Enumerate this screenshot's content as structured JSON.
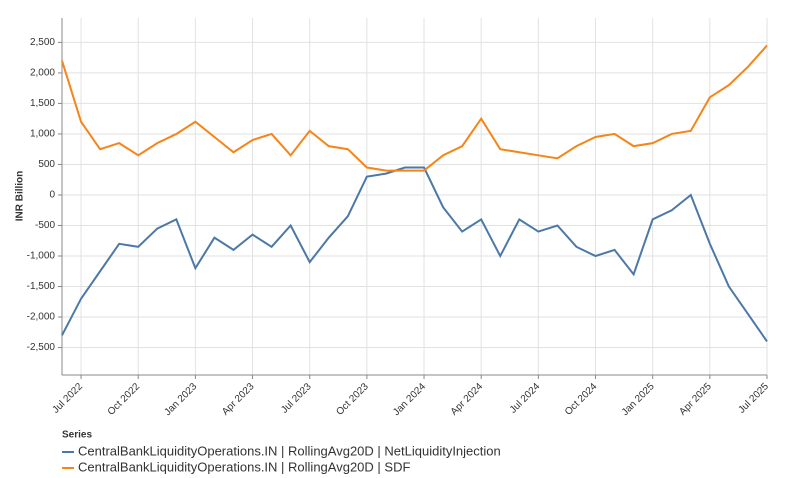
{
  "chart_data": {
    "type": "line",
    "y_label": "INR Billion",
    "legend_title": "Series",
    "x": [
      "2022-06",
      "2022-07",
      "2022-08",
      "2022-09",
      "2022-10",
      "2022-11",
      "2022-12",
      "2023-01",
      "2023-02",
      "2023-03",
      "2023-04",
      "2023-05",
      "2023-06",
      "2023-07",
      "2023-08",
      "2023-09",
      "2023-10",
      "2023-11",
      "2023-12",
      "2024-01",
      "2024-02",
      "2024-03",
      "2024-04",
      "2024-05",
      "2024-06",
      "2024-07",
      "2024-08",
      "2024-09",
      "2024-10",
      "2024-11",
      "2024-12",
      "2025-01",
      "2025-02",
      "2025-03",
      "2025-04",
      "2025-05",
      "2025-06",
      "2025-07"
    ],
    "series": [
      {
        "name": "CentralBankLiquidityOperations.IN | RollingAvg20D | NetLiquidityInjection",
        "color": "#4c78a8",
        "values": [
          -2300,
          -1700,
          -1250,
          -800,
          -850,
          -550,
          -400,
          -1200,
          -700,
          -900,
          -650,
          -850,
          -500,
          -1100,
          -700,
          -350,
          300,
          350,
          450,
          450,
          -200,
          -600,
          -400,
          -1000,
          -400,
          -600,
          -500,
          -850,
          -1000,
          -900,
          -1300,
          -400,
          -250,
          0,
          -800,
          -1500,
          -1950,
          -2400
        ]
      },
      {
        "name": "CentralBankLiquidityOperations.IN | RollingAvg20D | SDF",
        "color": "#f58518",
        "values": [
          2200,
          1200,
          750,
          850,
          650,
          850,
          1000,
          1200,
          950,
          700,
          900,
          1000,
          650,
          1050,
          800,
          750,
          450,
          400,
          400,
          400,
          650,
          800,
          1250,
          750,
          700,
          650,
          600,
          800,
          950,
          1000,
          800,
          850,
          1000,
          1050,
          1600,
          1800,
          2100,
          2450
        ]
      }
    ],
    "xlim": [
      "2022-06",
      "2025-07"
    ],
    "xticks": [
      {
        "value": "2022-07",
        "label": "Jul 2022"
      },
      {
        "value": "2022-10",
        "label": "Oct 2022"
      },
      {
        "value": "2023-01",
        "label": "Jan 2023"
      },
      {
        "value": "2023-04",
        "label": "Apr 2023"
      },
      {
        "value": "2023-07",
        "label": "Jul 2023"
      },
      {
        "value": "2023-10",
        "label": "Oct 2023"
      },
      {
        "value": "2024-01",
        "label": "Jan 2024"
      },
      {
        "value": "2024-04",
        "label": "Apr 2024"
      },
      {
        "value": "2024-07",
        "label": "Jul 2024"
      },
      {
        "value": "2024-10",
        "label": "Oct 2024"
      },
      {
        "value": "2025-01",
        "label": "Jan 2025"
      },
      {
        "value": "2025-04",
        "label": "Apr 2025"
      },
      {
        "value": "2025-07",
        "label": "Jul 2025"
      }
    ],
    "ylim": [
      -2950,
      2900
    ],
    "yticks": [
      {
        "value": -2500,
        "label": "-2,500"
      },
      {
        "value": -2000,
        "label": "-2,000"
      },
      {
        "value": -1500,
        "label": "-1,500"
      },
      {
        "value": -1000,
        "label": "-1,000"
      },
      -500,
      0,
      500,
      {
        "value": 1000,
        "label": "1,000"
      },
      {
        "value": 1500,
        "label": "1,500"
      },
      {
        "value": 2000,
        "label": "2,000"
      },
      {
        "value": 2500,
        "label": "2,500"
      }
    ],
    "grid": true
  }
}
